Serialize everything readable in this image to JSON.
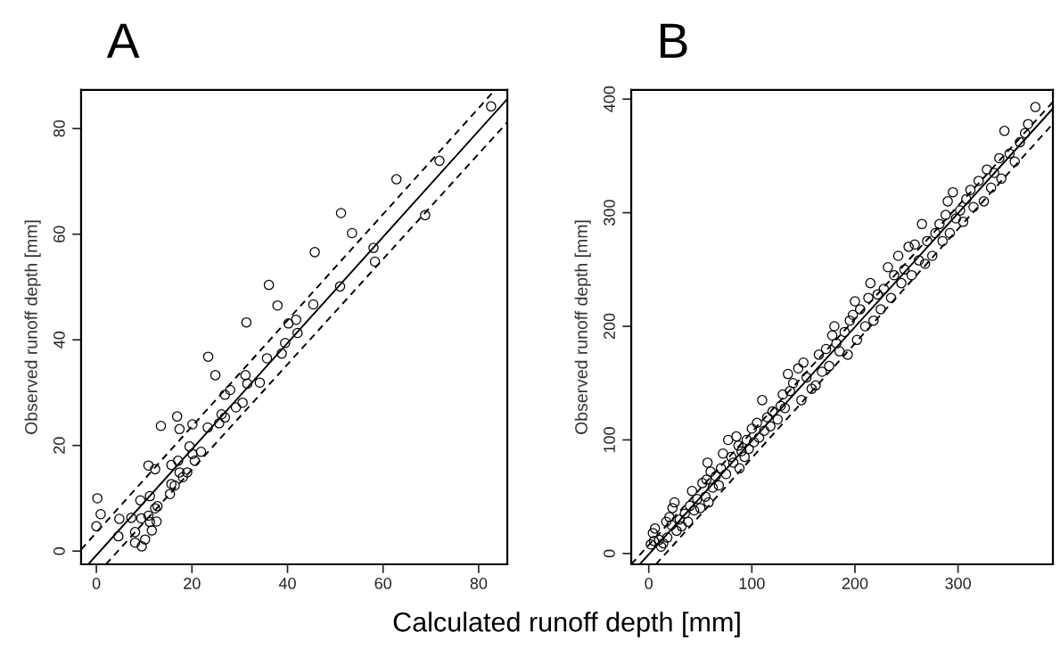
{
  "chart_data": [
    {
      "type": "scatter",
      "title": "A",
      "xlabel": "Calculated runoff depth [mm]",
      "ylabel": "Observed runoff depth [mm]",
      "xlim": [
        -3.2,
        86
      ],
      "ylim": [
        -2.5,
        87.3
      ],
      "xticks": [
        0,
        20,
        40,
        60,
        80
      ],
      "yticks": [
        0,
        20,
        40,
        60,
        80
      ],
      "grid": false,
      "series": [
        {
          "color": "#000000",
          "marker": "circle",
          "x": [
            0.2,
            0.9,
            0,
            4.8,
            4.6,
            7.3,
            8.1,
            8.1,
            9.5,
            10.2,
            9.2,
            11.2,
            9.4,
            10.9,
            11.2,
            11.6,
            12.6,
            12.8,
            12.3,
            10.9,
            12.3,
            13.5,
            15.4,
            15.7,
            16.4,
            15.7,
            17.1,
            17.4,
            18.1,
            19.0,
            16.9,
            17.4,
            19.5,
            20.1,
            20.1,
            20.6,
            21.9,
            23.3,
            23.4,
            24.9,
            25.7,
            26.2,
            26.9,
            26.9,
            28.0,
            29.2,
            30.6,
            31.2,
            31.6,
            31.4,
            34.2,
            35.7,
            36.1,
            37.9,
            38.8,
            39.5,
            40.2,
            41.8,
            42.1,
            45.4,
            45.7,
            51.0,
            51.2,
            53.5,
            58.0,
            58.3,
            62.8,
            68.8,
            71.8,
            82.6
          ],
          "values": [
            10.0,
            7.0,
            4.7,
            6.1,
            2.8,
            6.3,
            3.6,
            1.6,
            0.9,
            2.2,
            9.6,
            10.4,
            6.2,
            6.7,
            5.5,
            3.9,
            5.6,
            8.5,
            8.1,
            16.2,
            15.5,
            23.7,
            10.8,
            12.7,
            12.4,
            16.3,
            17.1,
            14.9,
            14.0,
            14.9,
            25.5,
            23.1,
            19.8,
            24.0,
            18.4,
            17.1,
            18.8,
            23.4,
            36.8,
            33.3,
            24.2,
            25.9,
            25.3,
            29.6,
            30.5,
            27.2,
            28.1,
            33.3,
            31.7,
            43.3,
            31.9,
            36.5,
            50.4,
            46.5,
            37.4,
            39.4,
            43.1,
            43.8,
            41.3,
            46.7,
            56.6,
            50.1,
            64.0,
            60.2,
            57.4,
            54.8,
            70.4,
            63.6,
            73.9,
            84.2
          ]
        },
        {
          "type": "line",
          "color": "#000000",
          "line_style": "solid",
          "marker": "none",
          "x": [
            -1.7,
            86
          ],
          "values": [
            -2.5,
            85.6
          ]
        },
        {
          "type": "line",
          "color": "#000000",
          "line_style": "dashed",
          "marker": "none",
          "x": [
            -3.2,
            83.4
          ],
          "values": [
            0.3,
            87.3
          ]
        },
        {
          "type": "line",
          "color": "#000000",
          "line_style": "dashed",
          "marker": "none",
          "x": [
            2.0,
            86
          ],
          "values": [
            -2.5,
            81.2
          ]
        }
      ]
    },
    {
      "type": "scatter",
      "title": "B",
      "ylabel": "Observed runoff depth [mm]",
      "xlim": [
        -17,
        392
      ],
      "ylim": [
        -9.5,
        408
      ],
      "xticks": [
        0,
        100,
        200,
        300
      ],
      "yticks": [
        0,
        100,
        200,
        300,
        400
      ],
      "grid": false,
      "series": [
        {
          "color": "#000000",
          "marker": "circle",
          "x": [
            2,
            5,
            6,
            4,
            10,
            12,
            14,
            18,
            17,
            20,
            23,
            25,
            22,
            27,
            30,
            32,
            35,
            38,
            40,
            42,
            44,
            47,
            50,
            52,
            55,
            56,
            58,
            57,
            60,
            62,
            65,
            68,
            70,
            72,
            75,
            77,
            80,
            82,
            85,
            87,
            88,
            90,
            93,
            95,
            97,
            100,
            102,
            105,
            107,
            110,
            112,
            115,
            118,
            120,
            125,
            128,
            130,
            132,
            135,
            137,
            140,
            145,
            148,
            150,
            153,
            158,
            162,
            165,
            168,
            172,
            175,
            178,
            180,
            182,
            185,
            190,
            193,
            195,
            198,
            200,
            202,
            205,
            210,
            213,
            215,
            218,
            222,
            225,
            228,
            232,
            235,
            238,
            242,
            245,
            248,
            252,
            255,
            258,
            262,
            265,
            268,
            270,
            275,
            278,
            282,
            285,
            288,
            290,
            292,
            295,
            298,
            302,
            305,
            308,
            312,
            315,
            320,
            325,
            328,
            332,
            335,
            340,
            342,
            345,
            350,
            355,
            360,
            365,
            368,
            375
          ],
          "values": [
            8,
            11,
            22,
            18,
            12,
            6,
            9,
            14,
            28,
            32,
            40,
            45,
            25,
            20,
            30,
            24,
            35,
            28,
            42,
            55,
            38,
            48,
            40,
            62,
            50,
            65,
            45,
            80,
            72,
            58,
            68,
            60,
            75,
            88,
            70,
            100,
            85,
            80,
            103,
            95,
            75,
            90,
            85,
            100,
            92,
            110,
            98,
            115,
            102,
            135,
            108,
            120,
            112,
            125,
            118,
            130,
            140,
            128,
            158,
            143,
            150,
            163,
            135,
            168,
            155,
            145,
            148,
            175,
            160,
            180,
            165,
            192,
            200,
            185,
            178,
            195,
            175,
            205,
            210,
            222,
            188,
            215,
            200,
            225,
            238,
            205,
            228,
            215,
            233,
            252,
            225,
            245,
            262,
            238,
            250,
            270,
            245,
            272,
            258,
            290,
            255,
            275,
            262,
            282,
            290,
            275,
            298,
            310,
            282,
            318,
            295,
            302,
            292,
            312,
            320,
            305,
            328,
            310,
            338,
            322,
            335,
            348,
            330,
            372,
            352,
            345,
            362,
            370,
            378,
            393
          ]
        },
        {
          "type": "line",
          "color": "#000000",
          "line_style": "solid",
          "marker": "none",
          "x": [
            -8.7,
            392
          ],
          "values": [
            -9.5,
            391.7
          ]
        },
        {
          "type": "line",
          "color": "#000000",
          "line_style": "dashed",
          "marker": "none",
          "x": [
            -17,
            392
          ],
          "values": [
            -9.5,
            397.6
          ]
        },
        {
          "type": "line",
          "color": "#000000",
          "line_style": "dashed",
          "marker": "none",
          "x": [
            7,
            392
          ],
          "values": [
            -9.5,
            378.3
          ]
        }
      ]
    }
  ]
}
